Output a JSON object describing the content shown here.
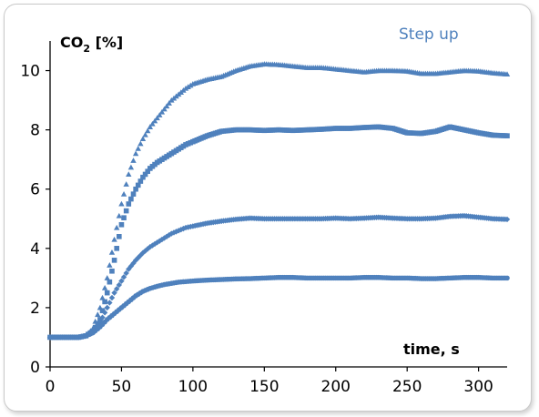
{
  "chart_data": {
    "type": "scatter",
    "title": "Step up",
    "ylabel_main": "CO",
    "ylabel_sub": "2",
    "ylabel_unit": " [%]",
    "xlabel": "time, s",
    "xlim": [
      0,
      320
    ],
    "ylim": [
      0,
      11
    ],
    "xticks": [
      0,
      50,
      100,
      150,
      200,
      250,
      300
    ],
    "yticks": [
      0,
      2,
      4,
      6,
      8,
      10
    ],
    "grid": false,
    "marker_color": "#4f81bd",
    "series": [
      {
        "marker": "triangle",
        "points": [
          [
            0,
            1
          ],
          [
            10,
            1
          ],
          [
            20,
            1
          ],
          [
            25,
            1.05
          ],
          [
            30,
            1.3
          ],
          [
            35,
            2.0
          ],
          [
            40,
            3.0
          ],
          [
            45,
            4.3
          ],
          [
            50,
            5.5
          ],
          [
            55,
            6.5
          ],
          [
            60,
            7.2
          ],
          [
            65,
            7.7
          ],
          [
            70,
            8.1
          ],
          [
            75,
            8.4
          ],
          [
            80,
            8.7
          ],
          [
            85,
            9.0
          ],
          [
            90,
            9.2
          ],
          [
            95,
            9.4
          ],
          [
            100,
            9.55
          ],
          [
            110,
            9.7
          ],
          [
            120,
            9.8
          ],
          [
            130,
            10.0
          ],
          [
            140,
            10.15
          ],
          [
            150,
            10.22
          ],
          [
            160,
            10.2
          ],
          [
            170,
            10.15
          ],
          [
            180,
            10.1
          ],
          [
            190,
            10.1
          ],
          [
            200,
            10.05
          ],
          [
            210,
            10.0
          ],
          [
            220,
            9.95
          ],
          [
            230,
            10.0
          ],
          [
            240,
            10.0
          ],
          [
            250,
            9.98
          ],
          [
            260,
            9.9
          ],
          [
            270,
            9.9
          ],
          [
            280,
            9.95
          ],
          [
            290,
            10.0
          ],
          [
            300,
            9.98
          ],
          [
            310,
            9.92
          ],
          [
            320,
            9.88
          ]
        ]
      },
      {
        "marker": "square",
        "points": [
          [
            0,
            1
          ],
          [
            10,
            1
          ],
          [
            20,
            1
          ],
          [
            25,
            1.05
          ],
          [
            30,
            1.2
          ],
          [
            35,
            1.6
          ],
          [
            40,
            2.5
          ],
          [
            45,
            3.6
          ],
          [
            50,
            4.8
          ],
          [
            55,
            5.5
          ],
          [
            60,
            6.0
          ],
          [
            65,
            6.4
          ],
          [
            70,
            6.7
          ],
          [
            75,
            6.9
          ],
          [
            80,
            7.05
          ],
          [
            85,
            7.2
          ],
          [
            90,
            7.35
          ],
          [
            95,
            7.5
          ],
          [
            100,
            7.6
          ],
          [
            110,
            7.8
          ],
          [
            120,
            7.95
          ],
          [
            130,
            8.0
          ],
          [
            140,
            8.0
          ],
          [
            150,
            7.98
          ],
          [
            160,
            8.0
          ],
          [
            170,
            7.98
          ],
          [
            180,
            8.0
          ],
          [
            190,
            8.02
          ],
          [
            200,
            8.05
          ],
          [
            210,
            8.05
          ],
          [
            220,
            8.08
          ],
          [
            230,
            8.1
          ],
          [
            240,
            8.05
          ],
          [
            250,
            7.9
          ],
          [
            260,
            7.88
          ],
          [
            270,
            7.95
          ],
          [
            280,
            8.1
          ],
          [
            290,
            8.0
          ],
          [
            300,
            7.9
          ],
          [
            310,
            7.82
          ],
          [
            320,
            7.8
          ]
        ]
      },
      {
        "marker": "diamond",
        "points": [
          [
            0,
            1
          ],
          [
            10,
            1
          ],
          [
            20,
            1
          ],
          [
            25,
            1.05
          ],
          [
            30,
            1.2
          ],
          [
            35,
            1.5
          ],
          [
            40,
            2.0
          ],
          [
            45,
            2.5
          ],
          [
            50,
            2.9
          ],
          [
            55,
            3.3
          ],
          [
            60,
            3.6
          ],
          [
            65,
            3.85
          ],
          [
            70,
            4.05
          ],
          [
            75,
            4.2
          ],
          [
            80,
            4.35
          ],
          [
            85,
            4.5
          ],
          [
            90,
            4.6
          ],
          [
            95,
            4.7
          ],
          [
            100,
            4.75
          ],
          [
            110,
            4.85
          ],
          [
            120,
            4.92
          ],
          [
            130,
            4.98
          ],
          [
            140,
            5.02
          ],
          [
            150,
            5.0
          ],
          [
            160,
            5.0
          ],
          [
            170,
            5.0
          ],
          [
            180,
            5.0
          ],
          [
            190,
            5.0
          ],
          [
            200,
            5.02
          ],
          [
            210,
            5.0
          ],
          [
            220,
            5.02
          ],
          [
            230,
            5.05
          ],
          [
            240,
            5.02
          ],
          [
            250,
            5.0
          ],
          [
            260,
            5.0
          ],
          [
            270,
            5.02
          ],
          [
            280,
            5.08
          ],
          [
            290,
            5.1
          ],
          [
            300,
            5.05
          ],
          [
            310,
            5.0
          ],
          [
            320,
            4.98
          ]
        ]
      },
      {
        "marker": "circle",
        "points": [
          [
            0,
            1
          ],
          [
            10,
            1
          ],
          [
            20,
            1
          ],
          [
            25,
            1.05
          ],
          [
            30,
            1.15
          ],
          [
            35,
            1.35
          ],
          [
            40,
            1.6
          ],
          [
            45,
            1.8
          ],
          [
            50,
            2.0
          ],
          [
            55,
            2.2
          ],
          [
            60,
            2.4
          ],
          [
            65,
            2.55
          ],
          [
            70,
            2.65
          ],
          [
            75,
            2.72
          ],
          [
            80,
            2.78
          ],
          [
            85,
            2.82
          ],
          [
            90,
            2.86
          ],
          [
            95,
            2.88
          ],
          [
            100,
            2.9
          ],
          [
            110,
            2.93
          ],
          [
            120,
            2.95
          ],
          [
            130,
            2.97
          ],
          [
            140,
            2.98
          ],
          [
            150,
            3.0
          ],
          [
            160,
            3.02
          ],
          [
            170,
            3.02
          ],
          [
            180,
            3.0
          ],
          [
            190,
            3.0
          ],
          [
            200,
            3.0
          ],
          [
            210,
            3.0
          ],
          [
            220,
            3.02
          ],
          [
            230,
            3.02
          ],
          [
            240,
            3.0
          ],
          [
            250,
            3.0
          ],
          [
            260,
            2.98
          ],
          [
            270,
            2.98
          ],
          [
            280,
            3.0
          ],
          [
            290,
            3.02
          ],
          [
            300,
            3.02
          ],
          [
            310,
            3.0
          ],
          [
            320,
            3.0
          ]
        ]
      }
    ]
  }
}
